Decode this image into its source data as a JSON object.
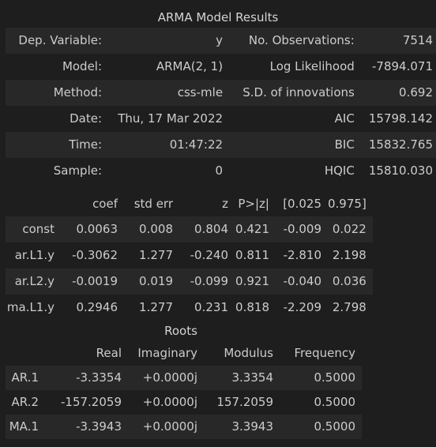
{
  "results": {
    "caption": "ARMA Model Results",
    "rows": [
      [
        "Dep. Variable:",
        "y",
        "No. Observations:",
        "7514"
      ],
      [
        "Model:",
        "ARMA(2, 1)",
        "Log Likelihood",
        "-7894.071"
      ],
      [
        "Method:",
        "css-mle",
        "S.D. of innovations",
        "0.692"
      ],
      [
        "Date:",
        "Thu, 17 Mar 2022",
        "AIC",
        "15798.142"
      ],
      [
        "Time:",
        "01:47:22",
        "BIC",
        "15832.765"
      ],
      [
        "Sample:",
        "0",
        "HQIC",
        "15810.030"
      ]
    ]
  },
  "coefficients": {
    "headers": [
      "",
      "coef",
      "std err",
      "z",
      "P>|z|",
      "[0.025",
      "0.975]"
    ],
    "rows": [
      [
        "const",
        "0.0063",
        "0.008",
        "0.804",
        "0.421",
        "-0.009",
        "0.022"
      ],
      [
        "ar.L1.y",
        "-0.3062",
        "1.277",
        "-0.240",
        "0.811",
        "-2.810",
        "2.198"
      ],
      [
        "ar.L2.y",
        "-0.0019",
        "0.019",
        "-0.099",
        "0.921",
        "-0.040",
        "0.036"
      ],
      [
        "ma.L1.y",
        "0.2946",
        "1.277",
        "0.231",
        "0.818",
        "-2.209",
        "2.798"
      ]
    ]
  },
  "roots": {
    "caption": "Roots",
    "headers": [
      "",
      "Real",
      "Imaginary",
      "Modulus",
      "Frequency"
    ],
    "rows": [
      [
        "AR.1",
        "-3.3354",
        "+0.0000j",
        "3.3354",
        "0.5000"
      ],
      [
        "AR.2",
        "-157.2059",
        "+0.0000j",
        "157.2059",
        "0.5000"
      ],
      [
        "MA.1",
        "-3.3943",
        "+0.0000j",
        "3.3943",
        "0.5000"
      ]
    ]
  },
  "colors": {
    "background": "#1e1e1e",
    "row_shade": "#282828",
    "text": "#cccccc"
  }
}
